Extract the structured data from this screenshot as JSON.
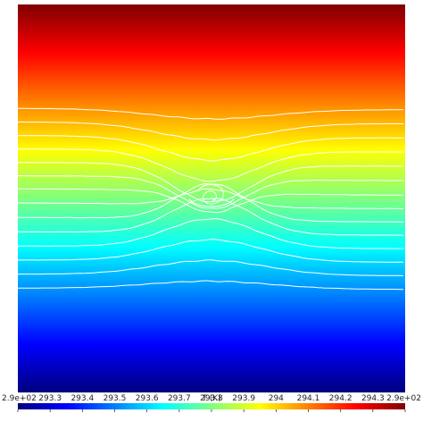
{
  "chart_data": {
    "type": "heatmap",
    "description_quantity": "T (K)",
    "colorbar": {
      "title": "T (K)",
      "range": [
        293.2,
        294.4
      ],
      "colormap": "jet",
      "tick_labels": [
        "2.9e+02",
        "293.3",
        "293.4",
        "293.5",
        "293.6",
        "293.7",
        "293.8",
        "293.9",
        "294",
        "294.1",
        "294.2",
        "294.3",
        "2.9e+02"
      ],
      "tick_values": [
        293.2,
        293.3,
        293.4,
        293.5,
        293.6,
        293.7,
        293.8,
        293.9,
        294.0,
        294.1,
        294.2,
        294.3,
        294.4
      ]
    },
    "field": {
      "gradient": "vertical",
      "top_value": 294.4,
      "bottom_value": 293.2
    },
    "contour_lines": {
      "color": "#ffffff",
      "count": 14
    }
  }
}
